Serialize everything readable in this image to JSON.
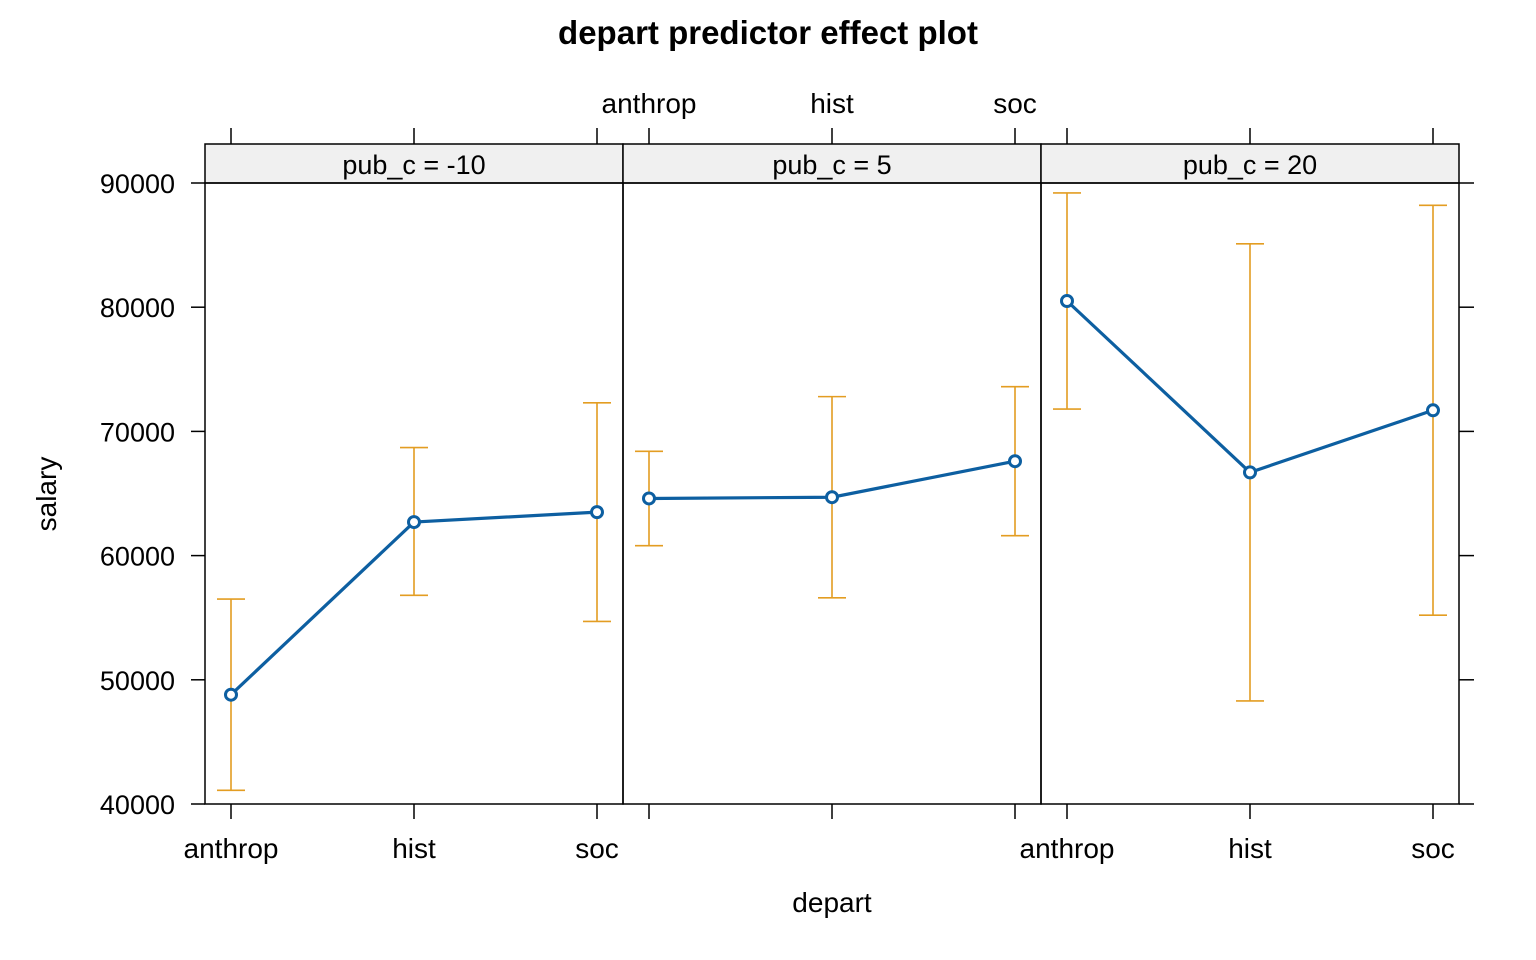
{
  "chart_data": {
    "type": "line",
    "title": "depart predictor effect plot",
    "xlabel": "depart",
    "ylabel": "salary",
    "ylim": [
      40000,
      90000
    ],
    "y_ticks": [
      "40000",
      "50000",
      "60000",
      "70000",
      "80000",
      "90000"
    ],
    "categories": [
      "anthrop",
      "hist",
      "soc"
    ],
    "panel_variable": "pub_c",
    "panels": [
      {
        "strip": "pub_c = -10",
        "fit": [
          48800,
          62700,
          63500
        ],
        "lower": [
          41100,
          56800,
          54700
        ],
        "upper": [
          56500,
          68700,
          72300
        ]
      },
      {
        "strip": "pub_c = 5",
        "fit": [
          64600,
          64700,
          67600
        ],
        "lower": [
          60800,
          56600,
          61600
        ],
        "upper": [
          68400,
          72800,
          73600
        ]
      },
      {
        "strip": "pub_c = 20",
        "fit": [
          80500,
          66700,
          71700
        ],
        "lower": [
          71800,
          48300,
          55200
        ],
        "upper": [
          89200,
          85100,
          88200
        ]
      }
    ],
    "colors": {
      "line": "#0d5fa1",
      "ci": "#e39d22",
      "strip_background": "#f0f0f0",
      "frame": "#000000"
    },
    "grid": false,
    "legend": "none"
  }
}
